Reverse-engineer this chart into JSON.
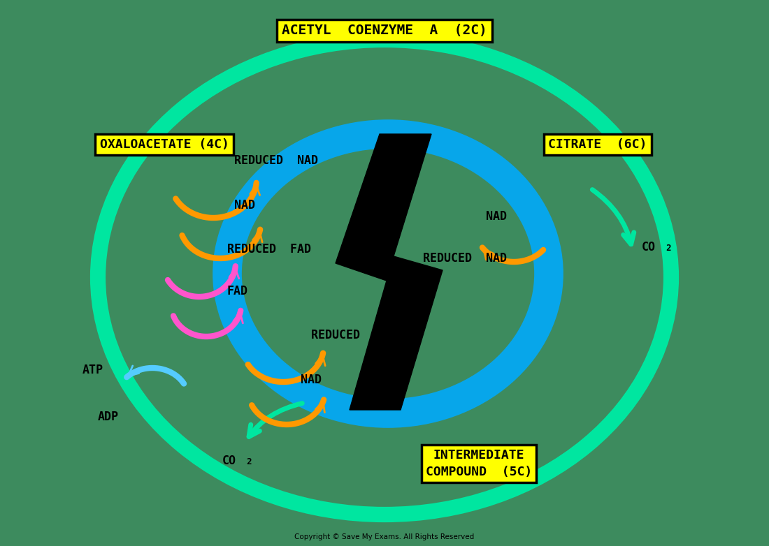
{
  "bg_color": "#3d8b5e",
  "copyright": "Copyright © Save My Exams. All Rights Reserved",
  "label_acetyl": "ACETYL  COENZYME  A  (2C)",
  "label_oxaloacetate": "OXALOACETATE (4C)",
  "label_citrate": "CITRATE  (6C)",
  "label_intermediate_1": "INTERMEDIATE",
  "label_intermediate_2": "COMPOUND  (5C)",
  "col_bg": "#3d8b5e",
  "col_outer_cycle": "#00e6a0",
  "col_orange": "#ff9900",
  "col_pink": "#ff55cc",
  "col_cyan": "#55ccff",
  "col_blue_ring": "#00aaff",
  "col_yellow_bg": "#ffff00",
  "col_black": "#000000",
  "col_white": "#ffffff"
}
